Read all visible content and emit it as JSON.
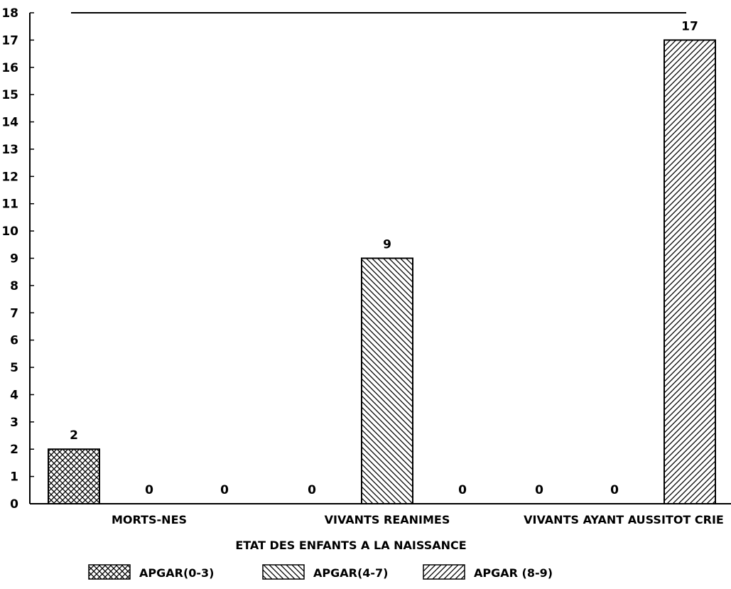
{
  "chart_data": {
    "type": "bar",
    "title": "",
    "xlabel": "ETAT DES ENFANTS A LA NAISSANCE",
    "ylabel": "",
    "ylim": [
      0,
      18
    ],
    "yticks": [
      0,
      1,
      2,
      3,
      4,
      5,
      6,
      7,
      8,
      9,
      10,
      11,
      12,
      13,
      14,
      15,
      16,
      17,
      18
    ],
    "grid": false,
    "legend_position": "bottom",
    "categories": [
      "MORTS-NES",
      "VIVANTS REANIMES",
      "VIVANTS AYANT AUSSITOT CRIE"
    ],
    "series": [
      {
        "name": "APGAR(0-3)",
        "values": [
          2,
          0,
          0
        ],
        "pattern": "crosshatch"
      },
      {
        "name": "APGAR(4-7)",
        "values": [
          0,
          9,
          0
        ],
        "pattern": "backward-diagonal"
      },
      {
        "name": "APGAR (8-9)",
        "values": [
          0,
          0,
          17
        ],
        "pattern": "forward-diagonal"
      }
    ],
    "data_labels": true
  },
  "colors": {
    "ink": "#000000",
    "background": "#ffffff"
  }
}
